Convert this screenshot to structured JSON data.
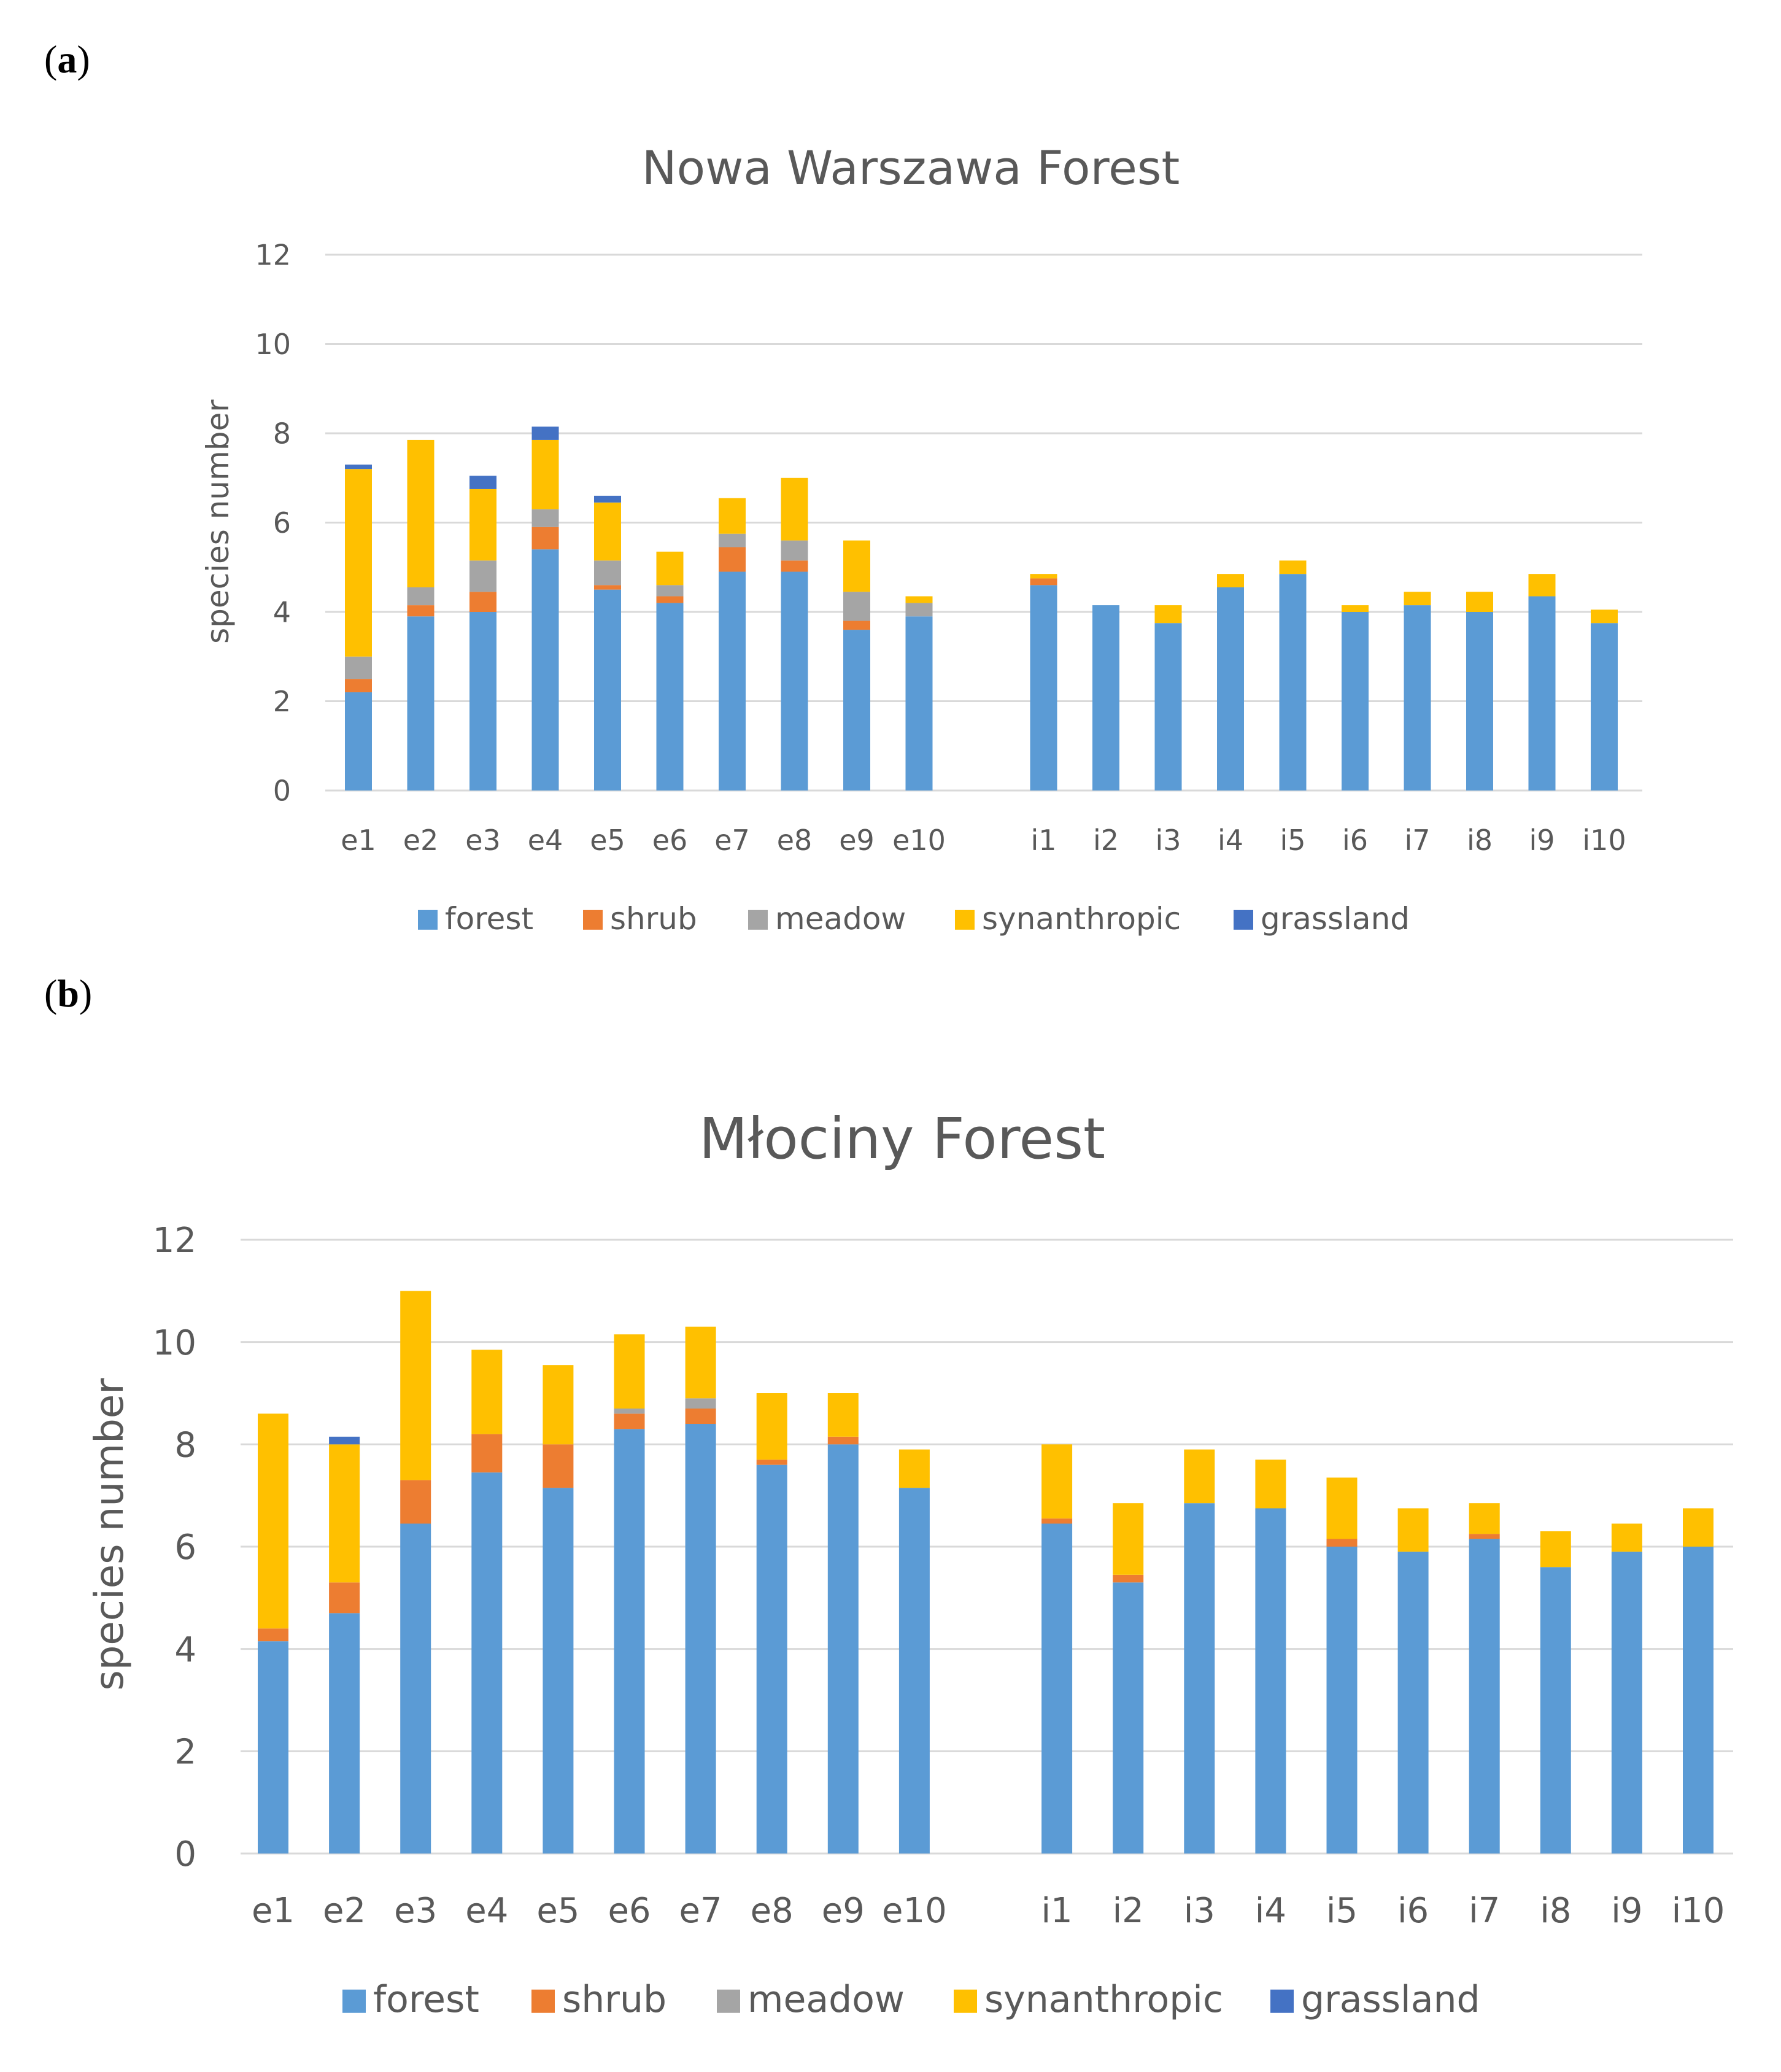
{
  "panels": [
    {
      "label_open": "(",
      "label_letter": "a",
      "label_close": ")"
    },
    {
      "label_open": "(",
      "label_letter": "b",
      "label_close": ")"
    }
  ],
  "colors": {
    "forest": "#5b9bd5",
    "shrub": "#ed7d31",
    "meadow": "#a5a5a5",
    "synanthropic": "#ffc000",
    "grassland": "#4472c4",
    "grid": "#d9d9d9",
    "text": "#595959"
  },
  "chart_data": [
    {
      "type": "bar",
      "stacked": true,
      "title": "Nowa Warszawa Forest",
      "xlabel": "",
      "ylabel": "species number",
      "ylim": [
        0,
        12
      ],
      "yticks": [
        "0",
        "2",
        "4",
        "6",
        "8",
        "10",
        "12"
      ],
      "legend_position": "bottom",
      "categories": [
        "e1",
        "e2",
        "e3",
        "e4",
        "e5",
        "e6",
        "e7",
        "e8",
        "e9",
        "e10",
        "i1",
        "i2",
        "i3",
        "i4",
        "i5",
        "i6",
        "i7",
        "i8",
        "i9",
        "i10"
      ],
      "series": [
        {
          "name": "forest",
          "values": [
            2.2,
            3.9,
            4.0,
            5.4,
            4.5,
            4.2,
            4.9,
            4.9,
            3.6,
            3.9,
            4.6,
            4.15,
            3.75,
            4.55,
            4.85,
            4.0,
            4.15,
            4.0,
            4.35,
            3.75
          ]
        },
        {
          "name": "shrub",
          "values": [
            0.3,
            0.25,
            0.45,
            0.5,
            0.1,
            0.15,
            0.55,
            0.25,
            0.2,
            0,
            0.15,
            0,
            0,
            0,
            0,
            0,
            0,
            0,
            0,
            0
          ]
        },
        {
          "name": "meadow",
          "values": [
            0.5,
            0.4,
            0.7,
            0.4,
            0.55,
            0.25,
            0.3,
            0.45,
            0.65,
            0.3,
            0,
            0,
            0,
            0,
            0,
            0,
            0,
            0,
            0,
            0
          ]
        },
        {
          "name": "synanthropic",
          "values": [
            4.2,
            3.3,
            1.6,
            1.55,
            1.3,
            0.75,
            0.8,
            1.4,
            1.15,
            0.15,
            0.1,
            0,
            0.4,
            0.3,
            0.3,
            0.15,
            0.3,
            0.45,
            0.5,
            0.3
          ]
        },
        {
          "name": "grassland",
          "values": [
            0.1,
            0,
            0.3,
            0.3,
            0.15,
            0,
            0,
            0,
            0,
            0,
            0,
            0,
            0,
            0,
            0,
            0,
            0,
            0,
            0,
            0
          ]
        }
      ]
    },
    {
      "type": "bar",
      "stacked": true,
      "title": "Młociny Forest",
      "xlabel": "",
      "ylabel": "species number",
      "ylim": [
        0,
        12
      ],
      "yticks": [
        "0",
        "2",
        "4",
        "6",
        "8",
        "10",
        "12"
      ],
      "legend_position": "bottom",
      "categories": [
        "e1",
        "e2",
        "e3",
        "e4",
        "e5",
        "e6",
        "e7",
        "e8",
        "e9",
        "e10",
        "i1",
        "i2",
        "i3",
        "i4",
        "i5",
        "i6",
        "i7",
        "i8",
        "i9",
        "i10"
      ],
      "series": [
        {
          "name": "forest",
          "values": [
            4.15,
            4.7,
            6.45,
            7.45,
            7.15,
            8.3,
            8.4,
            7.6,
            8.0,
            7.15,
            6.45,
            5.3,
            6.85,
            6.75,
            6.0,
            5.9,
            6.15,
            5.6,
            5.9,
            6.0
          ]
        },
        {
          "name": "shrub",
          "values": [
            0.25,
            0.6,
            0.85,
            0.75,
            0.85,
            0.3,
            0.3,
            0.1,
            0.15,
            0,
            0.1,
            0.15,
            0,
            0,
            0.15,
            0,
            0.1,
            0,
            0,
            0
          ]
        },
        {
          "name": "meadow",
          "values": [
            0,
            0,
            0,
            0,
            0,
            0.1,
            0.2,
            0,
            0,
            0,
            0,
            0,
            0,
            0,
            0,
            0,
            0,
            0,
            0,
            0
          ]
        },
        {
          "name": "synanthropic",
          "values": [
            4.2,
            2.7,
            3.7,
            1.65,
            1.55,
            1.45,
            1.4,
            1.3,
            0.85,
            0.75,
            1.45,
            1.4,
            1.05,
            0.95,
            1.2,
            0.85,
            0.6,
            0.7,
            0.55,
            0.75
          ]
        },
        {
          "name": "grassland",
          "values": [
            0,
            0.15,
            0,
            0,
            0,
            0,
            0,
            0,
            0,
            0,
            0,
            0,
            0,
            0,
            0,
            0,
            0,
            0,
            0,
            0
          ]
        }
      ]
    }
  ]
}
